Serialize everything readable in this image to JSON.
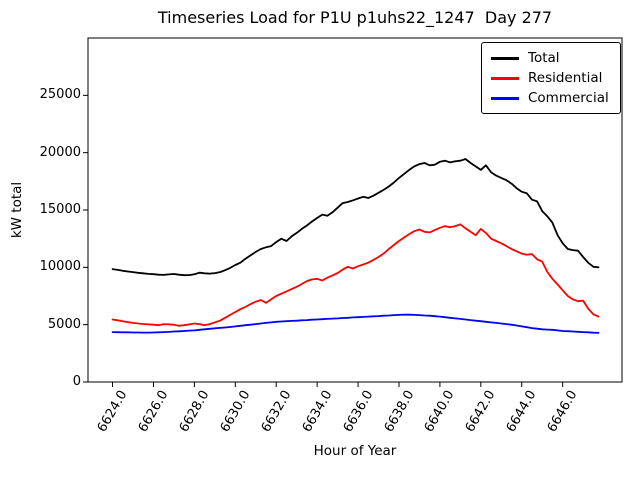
{
  "chart_data": {
    "type": "line",
    "title": "Timeseries Load for P1U p1uhs22_1247  Day 277",
    "xlabel": "Hour of Year",
    "ylabel": "kW total",
    "xlim": [
      6622.8,
      6648.9
    ],
    "ylim": [
      0,
      30000
    ],
    "grid": false,
    "legend_position": "upper right",
    "xticks": {
      "values": [
        6624,
        6626,
        6628,
        6630,
        6632,
        6634,
        6636,
        6638,
        6640,
        6642,
        6644,
        6646
      ],
      "labels": [
        "6624.0",
        "6626.0",
        "6628.0",
        "6630.0",
        "6632.0",
        "6634.0",
        "6636.0",
        "6638.0",
        "6640.0",
        "6642.0",
        "6644.0",
        "6646.0"
      ]
    },
    "yticks": {
      "values": [
        0,
        5000,
        10000,
        15000,
        20000,
        25000
      ],
      "labels": [
        "0",
        "5000",
        "10000",
        "15000",
        "20000",
        "25000"
      ]
    },
    "x": [
      6624,
      6624.25,
      6624.5,
      6624.75,
      6625,
      6625.25,
      6625.5,
      6625.75,
      6626,
      6626.25,
      6626.5,
      6626.75,
      6627,
      6627.25,
      6627.5,
      6627.75,
      6628,
      6628.25,
      6628.5,
      6628.75,
      6629,
      6629.25,
      6629.5,
      6629.75,
      6630,
      6630.25,
      6630.5,
      6630.75,
      6631,
      6631.25,
      6631.5,
      6631.75,
      6632,
      6632.25,
      6632.5,
      6632.75,
      6633,
      6633.25,
      6633.5,
      6633.75,
      6634,
      6634.25,
      6634.5,
      6634.75,
      6635,
      6635.25,
      6635.5,
      6635.75,
      6636,
      6636.25,
      6636.5,
      6636.75,
      6637,
      6637.25,
      6637.5,
      6637.75,
      6638,
      6638.25,
      6638.5,
      6638.75,
      6639,
      6639.25,
      6639.5,
      6639.75,
      6640,
      6640.25,
      6640.5,
      6640.75,
      6641,
      6641.25,
      6641.5,
      6641.75,
      6642,
      6642.25,
      6642.5,
      6642.75,
      6643,
      6643.25,
      6643.5,
      6643.75,
      6644,
      6644.25,
      6644.5,
      6644.75,
      6645,
      6645.25,
      6645.5,
      6645.75,
      6646,
      6646.25,
      6646.5,
      6646.75,
      6647,
      6647.25,
      6647.5,
      6647.75
    ],
    "series": [
      {
        "name": "Total",
        "color": "#000000",
        "values": [
          9850,
          9780,
          9700,
          9640,
          9580,
          9520,
          9480,
          9430,
          9400,
          9360,
          9340,
          9380,
          9420,
          9360,
          9310,
          9320,
          9400,
          9530,
          9480,
          9450,
          9500,
          9580,
          9750,
          9950,
          10200,
          10400,
          10750,
          11050,
          11350,
          11600,
          11750,
          11850,
          12200,
          12500,
          12300,
          12700,
          13000,
          13350,
          13650,
          14000,
          14300,
          14600,
          14500,
          14800,
          15200,
          15600,
          15700,
          15850,
          16000,
          16150,
          16050,
          16250,
          16500,
          16750,
          17050,
          17400,
          17800,
          18150,
          18500,
          18800,
          19000,
          19100,
          18900,
          18950,
          19200,
          19300,
          19150,
          19250,
          19300,
          19450,
          19100,
          18800,
          18500,
          18900,
          18300,
          18000,
          17800,
          17600,
          17300,
          16900,
          16600,
          16450,
          15900,
          15750,
          14900,
          14450,
          13900,
          12800,
          12100,
          11600,
          11500,
          11450,
          10900,
          10400,
          10050,
          10000
        ]
      },
      {
        "name": "Residential",
        "color": "#ff0000",
        "values": [
          5450,
          5380,
          5300,
          5220,
          5150,
          5100,
          5060,
          5020,
          5000,
          4950,
          5050,
          5020,
          5000,
          4900,
          4950,
          5020,
          5100,
          5050,
          4950,
          5050,
          5200,
          5350,
          5600,
          5850,
          6100,
          6350,
          6550,
          6800,
          7000,
          7150,
          6900,
          7200,
          7500,
          7700,
          7900,
          8100,
          8300,
          8550,
          8800,
          8950,
          9000,
          8850,
          9100,
          9300,
          9500,
          9800,
          10050,
          9900,
          10100,
          10250,
          10400,
          10650,
          10900,
          11200,
          11600,
          11950,
          12300,
          12600,
          12900,
          13150,
          13300,
          13100,
          13050,
          13250,
          13450,
          13600,
          13500,
          13600,
          13750,
          13400,
          13100,
          12800,
          13350,
          13000,
          12500,
          12300,
          12100,
          11850,
          11600,
          11400,
          11200,
          11100,
          11150,
          10700,
          10500,
          9600,
          9000,
          8500,
          8000,
          7500,
          7200,
          7050,
          7100,
          6400,
          5900,
          5700
        ]
      },
      {
        "name": "Commercial",
        "color": "#0000ff",
        "values": [
          4350,
          4340,
          4330,
          4330,
          4320,
          4320,
          4310,
          4310,
          4320,
          4330,
          4350,
          4370,
          4400,
          4420,
          4450,
          4480,
          4500,
          4550,
          4600,
          4640,
          4680,
          4720,
          4750,
          4800,
          4850,
          4900,
          4950,
          5000,
          5050,
          5100,
          5150,
          5200,
          5250,
          5280,
          5300,
          5330,
          5350,
          5380,
          5400,
          5430,
          5450,
          5480,
          5500,
          5530,
          5550,
          5580,
          5600,
          5630,
          5650,
          5680,
          5700,
          5730,
          5750,
          5780,
          5800,
          5830,
          5850,
          5880,
          5870,
          5850,
          5830,
          5800,
          5780,
          5740,
          5700,
          5650,
          5600,
          5550,
          5500,
          5450,
          5400,
          5350,
          5300,
          5250,
          5200,
          5150,
          5100,
          5050,
          5000,
          4930,
          4850,
          4780,
          4700,
          4650,
          4600,
          4570,
          4550,
          4500,
          4450,
          4430,
          4400,
          4380,
          4350,
          4330,
          4300,
          4280
        ]
      }
    ]
  }
}
